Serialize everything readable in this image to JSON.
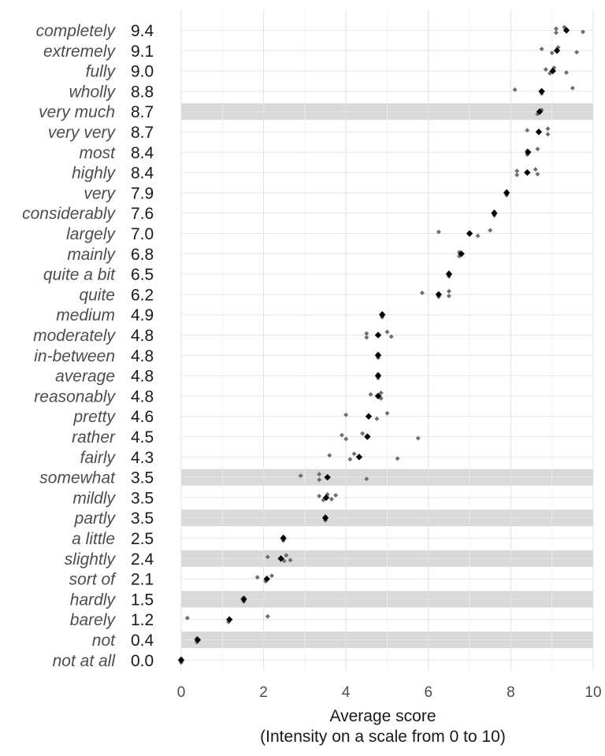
{
  "chart_data": {
    "type": "scatter",
    "xlabel": "Average score",
    "xlabel_sub": "(Intensity on a scale from 0 to 10)",
    "xlim": [
      0,
      10
    ],
    "xticks": [
      0,
      2,
      4,
      6,
      8,
      10
    ],
    "grid": true,
    "highlight_color": "#d9d9d9",
    "mean_color": "#000000",
    "individual_color": "#6e6e6e",
    "rows": [
      {
        "label": "completely",
        "score": "9.4",
        "mean": 9.35,
        "highlight": false,
        "points": [
          9.1,
          9.1,
          9.3,
          9.75
        ]
      },
      {
        "label": "extremely",
        "score": "9.1",
        "mean": 9.12,
        "highlight": false,
        "points": [
          8.75,
          9.0,
          9.15,
          9.6
        ]
      },
      {
        "label": "fully",
        "score": "9.0",
        "mean": 9.02,
        "highlight": false,
        "points": [
          8.85,
          8.95,
          9.05,
          9.35
        ]
      },
      {
        "label": "wholly",
        "score": "8.8",
        "mean": 8.75,
        "highlight": false,
        "points": [
          8.1,
          8.75,
          9.5
        ]
      },
      {
        "label": "very much",
        "score": "8.7",
        "mean": 8.7,
        "highlight": true,
        "points": [
          8.75,
          8.65
        ]
      },
      {
        "label": "very very",
        "score": "8.7",
        "mean": 8.68,
        "highlight": false,
        "points": [
          8.4,
          8.9,
          8.9
        ]
      },
      {
        "label": "most",
        "score": "8.4",
        "mean": 8.42,
        "highlight": false,
        "points": [
          8.4,
          8.4,
          8.65
        ]
      },
      {
        "label": "highly",
        "score": "8.4",
        "mean": 8.4,
        "highlight": false,
        "points": [
          8.15,
          8.15,
          8.6,
          8.65
        ]
      },
      {
        "label": "very",
        "score": "7.9",
        "mean": 7.9,
        "highlight": false,
        "points": [
          7.9,
          7.9
        ]
      },
      {
        "label": "considerably",
        "score": "7.6",
        "mean": 7.6,
        "highlight": false,
        "points": [
          7.6,
          7.6
        ]
      },
      {
        "label": "largely",
        "score": "7.0",
        "mean": 7.0,
        "highlight": false,
        "points": [
          6.25,
          7.2,
          7.5
        ]
      },
      {
        "label": "mainly",
        "score": "6.8",
        "mean": 6.8,
        "highlight": false,
        "points": [
          6.75,
          6.75
        ]
      },
      {
        "label": "quite a bit",
        "score": "6.5",
        "mean": 6.5,
        "highlight": false,
        "points": [
          6.5,
          6.5
        ]
      },
      {
        "label": "quite",
        "score": "6.2",
        "mean": 6.25,
        "highlight": false,
        "points": [
          5.85,
          6.25,
          6.5,
          6.5
        ]
      },
      {
        "label": "medium",
        "score": "4.9",
        "mean": 4.88,
        "highlight": false,
        "points": [
          4.88,
          4.88
        ]
      },
      {
        "label": "moderately",
        "score": "4.8",
        "mean": 4.78,
        "highlight": false,
        "points": [
          4.5,
          4.5,
          5.0,
          5.1
        ]
      },
      {
        "label": "in-between",
        "score": "4.8",
        "mean": 4.78,
        "highlight": false,
        "points": [
          4.78,
          4.78
        ]
      },
      {
        "label": "average",
        "score": "4.8",
        "mean": 4.78,
        "highlight": false,
        "points": [
          4.78,
          4.78
        ]
      },
      {
        "label": "reasonably",
        "score": "4.8",
        "mean": 4.78,
        "highlight": false,
        "points": [
          4.6,
          4.85,
          4.85
        ]
      },
      {
        "label": "pretty",
        "score": "4.6",
        "mean": 4.55,
        "highlight": false,
        "points": [
          4.0,
          4.75,
          5.0
        ]
      },
      {
        "label": "rather",
        "score": "4.5",
        "mean": 4.52,
        "highlight": false,
        "points": [
          3.9,
          4.0,
          4.4,
          5.75
        ]
      },
      {
        "label": "fairly",
        "score": "4.3",
        "mean": 4.32,
        "highlight": false,
        "points": [
          3.6,
          4.1,
          4.2,
          5.25
        ]
      },
      {
        "label": "somewhat",
        "score": "3.5",
        "mean": 3.55,
        "highlight": true,
        "points": [
          2.9,
          3.35,
          3.35,
          4.5
        ]
      },
      {
        "label": "mildly",
        "score": "3.5",
        "mean": 3.52,
        "highlight": false,
        "points": [
          3.35,
          3.45,
          3.55,
          3.65,
          3.75
        ]
      },
      {
        "label": "partly",
        "score": "3.5",
        "mean": 3.5,
        "highlight": true,
        "points": [
          3.5,
          3.5
        ]
      },
      {
        "label": "a little",
        "score": "2.5",
        "mean": 2.48,
        "highlight": false,
        "points": [
          2.48,
          2.48
        ]
      },
      {
        "label": "slightly",
        "score": "2.4",
        "mean": 2.42,
        "highlight": true,
        "points": [
          2.1,
          2.5,
          2.55,
          2.65
        ]
      },
      {
        "label": "sort of",
        "score": "2.1",
        "mean": 2.08,
        "highlight": false,
        "points": [
          1.85,
          2.05,
          2.2
        ]
      },
      {
        "label": "hardly",
        "score": "1.5",
        "mean": 1.52,
        "highlight": true,
        "points": [
          1.52,
          1.52
        ]
      },
      {
        "label": "barely",
        "score": "1.2",
        "mean": 1.17,
        "highlight": false,
        "points": [
          0.15,
          1.15,
          2.1
        ]
      },
      {
        "label": "not",
        "score": "0.4",
        "mean": 0.4,
        "highlight": true,
        "points": [
          0.38,
          0.38
        ]
      },
      {
        "label": "not at all",
        "score": "0.0",
        "mean": 0.0,
        "highlight": false,
        "points": [
          0.0,
          0.0
        ]
      }
    ]
  }
}
